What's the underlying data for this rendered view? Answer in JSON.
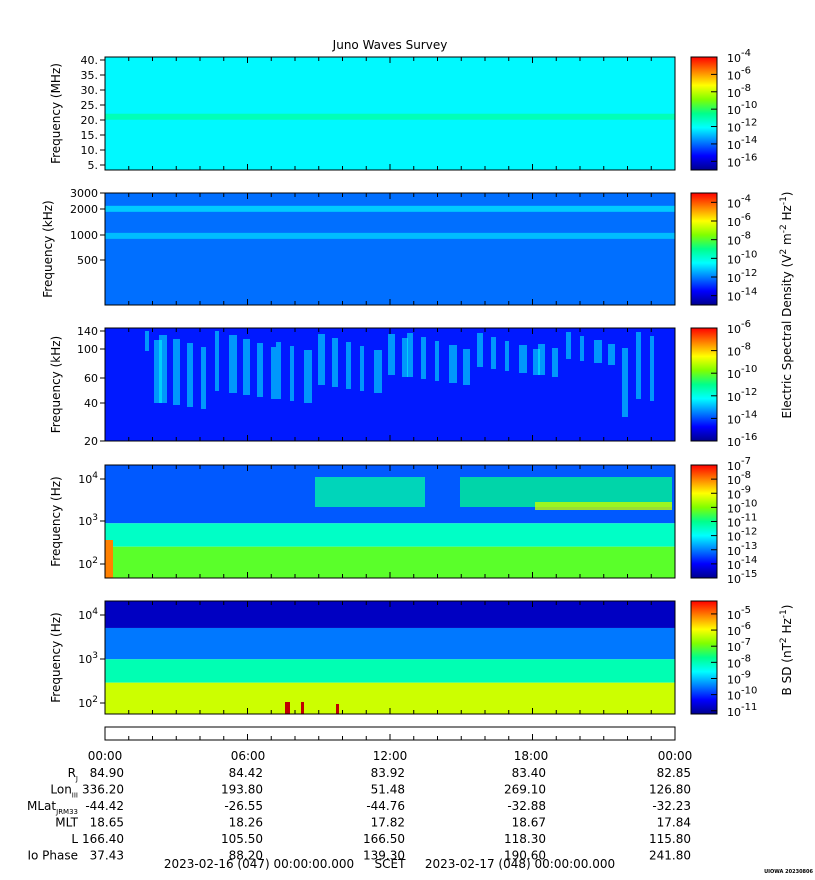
{
  "chart_data": {
    "type": "heatmap",
    "title": "Juno Waves Survey",
    "time_ticks": [
      "00:00",
      "06:00",
      "12:00",
      "18:00",
      "00:00"
    ],
    "panels": [
      {
        "ylabel": "Frequency (MHz)",
        "yticks": [
          "40.",
          "35.",
          "30.",
          "25.",
          "20.",
          "15.",
          "10.",
          "5."
        ],
        "colorbar_ticks": [
          "-4",
          "-6",
          "-8",
          "-10",
          "-12",
          "-14",
          "-16"
        ],
        "colorbar_range": [
          -17,
          -4
        ],
        "background_level": -12.2,
        "bands": [
          {
            "y": 21.5,
            "level": -11
          }
        ]
      },
      {
        "ylabel": "Frequency (kHz)",
        "yticks": [
          "3000",
          "2000",
          "1000",
          "500"
        ],
        "colorbar_ticks": [
          "-4",
          "-6",
          "-8",
          "-10",
          "-12",
          "-14"
        ],
        "colorbar_range": [
          -15,
          -3
        ],
        "background_level": -12.2,
        "bands": [
          {
            "y": 2000,
            "level": -11
          },
          {
            "y": 1000,
            "level": -11.2
          }
        ]
      },
      {
        "ylabel": "Frequency (kHz)",
        "yticks": [
          "140",
          "100",
          "60",
          "40",
          "20"
        ],
        "colorbar_ticks": [
          "-6",
          "-8",
          "-10",
          "-12",
          "-14",
          "-16"
        ],
        "colorbar_range": [
          -16,
          -6
        ],
        "background_level": -14.5
      },
      {
        "ylabel": "Frequency (Hz)",
        "yticks": [
          {
            "base": "10",
            "exp": "4"
          },
          {
            "base": "10",
            "exp": "3"
          },
          {
            "base": "10",
            "exp": "2"
          }
        ],
        "colorbar_ticks": [
          "-7",
          "-8",
          "-9",
          "-10",
          "-11",
          "-12",
          "-13",
          "-14",
          "-15"
        ],
        "colorbar_range": [
          -15,
          -7
        ],
        "bands": [
          {
            "y_from": 20000,
            "y_to": 1000,
            "level": -13.3
          },
          {
            "y_from": 1000,
            "y_to": 300,
            "level": -11.5
          },
          {
            "y_from": 300,
            "y_to": 60,
            "level": -10.3
          }
        ]
      },
      {
        "ylabel": "Frequency (Hz)",
        "yticks": [
          {
            "base": "10",
            "exp": "4"
          },
          {
            "base": "10",
            "exp": "3"
          },
          {
            "base": "10",
            "exp": "2"
          }
        ],
        "colorbar_ticks": [
          "-5",
          "-6",
          "-7",
          "-8",
          "-9",
          "-10",
          "-11"
        ],
        "colorbar_range": [
          -11.2,
          -4.2
        ],
        "bands": [
          {
            "y_from": 20000,
            "y_to": 5000,
            "level": -10.8
          },
          {
            "y_from": 5000,
            "y_to": 1000,
            "level": -9.5
          },
          {
            "y_from": 1000,
            "y_to": 300,
            "level": -8
          },
          {
            "y_from": 300,
            "y_to": 60,
            "level": -6.3
          }
        ]
      }
    ],
    "colorbar_labels": {
      "efield": {
        "text": "Electric Spectral Density (V",
        "sup1": "2",
        "mid1": " m",
        "sup2": "-2",
        "mid2": " Hz",
        "sup3": "-1",
        "end": ")"
      },
      "bfield": {
        "text": "B SD (nT",
        "sup1": "2",
        "mid1": " Hz",
        "sup2": "-1",
        "end": ")"
      }
    },
    "colorbar_base": "10",
    "ephemeris": {
      "rows": [
        {
          "label": "R",
          "sub": "J",
          "values": [
            "84.90",
            "84.42",
            "83.92",
            "83.40",
            "82.85"
          ]
        },
        {
          "label": "Lon",
          "sub": "III",
          "values": [
            "336.20",
            "193.80",
            "51.48",
            "269.10",
            "126.80"
          ]
        },
        {
          "label": "MLat",
          "sub": "JRM33",
          "values": [
            "-44.42",
            "-26.55",
            "-44.76",
            "-32.88",
            "-32.23"
          ]
        },
        {
          "label": "MLT",
          "sub": "",
          "values": [
            "18.65",
            "18.26",
            "17.82",
            "18.67",
            "17.84"
          ]
        },
        {
          "label": "L",
          "sub": "",
          "values": [
            "166.40",
            "105.50",
            "166.50",
            "118.30",
            "115.80"
          ]
        },
        {
          "label": "Io Phase",
          "sub": "",
          "values": [
            "37.43",
            "88.20",
            "139.30",
            "190.60",
            "241.80"
          ]
        }
      ]
    },
    "scet_start": "2023-02-16 (047) 00:00:00.000",
    "scet_label": "SCET",
    "scet_end": "2023-02-17 (048) 00:00:00.000",
    "credit": "UIOWA 20230806"
  }
}
